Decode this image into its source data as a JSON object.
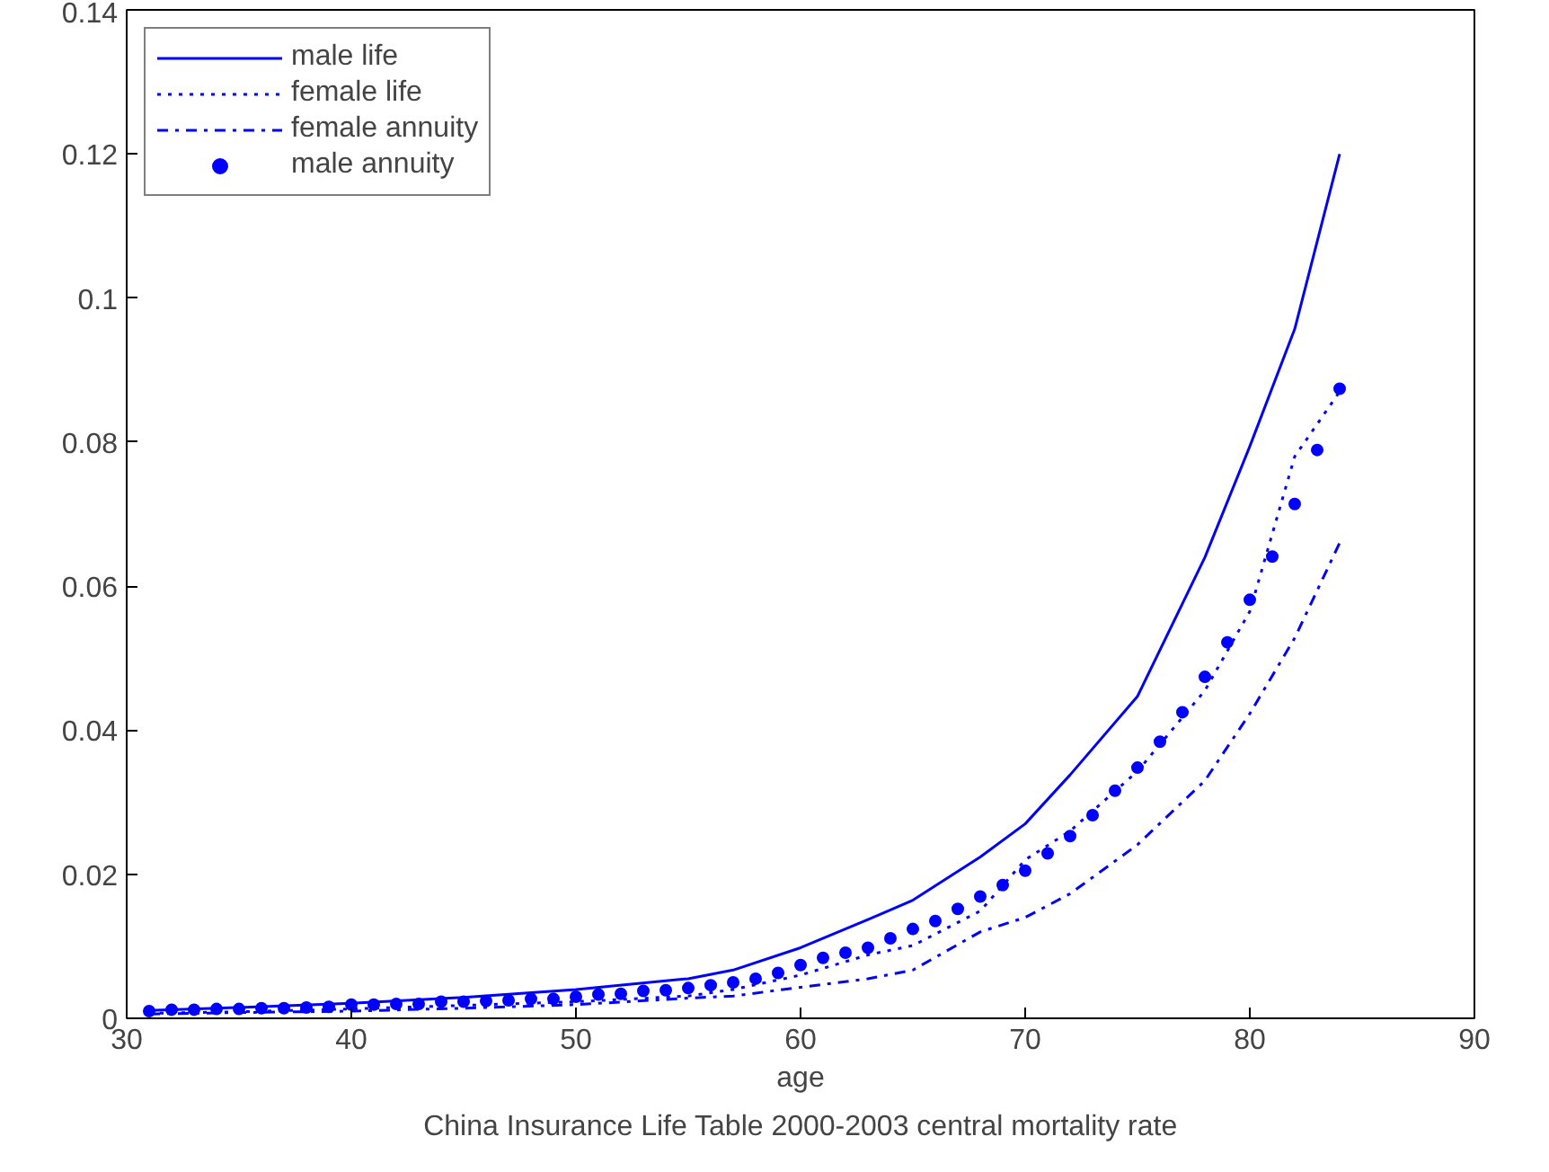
{
  "chart_data": {
    "type": "line",
    "xlabel": "age",
    "annotations": [
      "China Insurance Life Table 2000-2003 central mortality rate"
    ],
    "xlim": [
      30,
      90
    ],
    "xticks": [
      30,
      40,
      50,
      60,
      70,
      80,
      90
    ],
    "ylim": [
      0,
      0.14
    ],
    "yticks": [
      0,
      0.02,
      0.04,
      0.06,
      0.08,
      0.1,
      0.12,
      0.14
    ],
    "grid": false,
    "legend": "top left",
    "series": [
      {
        "name": "male life",
        "color": "#0000ff",
        "line_style": "solid",
        "x": [
          31,
          35,
          40,
          45,
          50,
          55,
          57,
          60,
          63,
          65,
          68,
          70,
          72,
          75,
          78,
          80,
          82,
          84
        ],
        "values": [
          0.0011,
          0.0015,
          0.0021,
          0.0029,
          0.004,
          0.0055,
          0.0067,
          0.0098,
          0.0137,
          0.0164,
          0.0224,
          0.027,
          0.0338,
          0.0447,
          0.064,
          0.0794,
          0.0957,
          0.12
        ]
      },
      {
        "name": "female life",
        "color": "#0000ff",
        "line_style": "dotted",
        "x": [
          31,
          35,
          40,
          45,
          50,
          55,
          57,
          60,
          63,
          65,
          68,
          70,
          72,
          75,
          78,
          80,
          82,
          84
        ],
        "values": [
          0.0007,
          0.0009,
          0.0013,
          0.0018,
          0.0023,
          0.0031,
          0.004,
          0.006,
          0.0088,
          0.0101,
          0.0149,
          0.022,
          0.026,
          0.0343,
          0.0455,
          0.0565,
          0.078,
          0.087
        ]
      },
      {
        "name": "female annuity",
        "color": "#0000ff",
        "line_style": "dashdot",
        "x": [
          31,
          35,
          40,
          45,
          50,
          55,
          57,
          60,
          63,
          65,
          68,
          70,
          72,
          75,
          78,
          80,
          82,
          84
        ],
        "values": [
          0.0006,
          0.0008,
          0.001,
          0.0014,
          0.0019,
          0.0028,
          0.0031,
          0.0043,
          0.0055,
          0.0067,
          0.012,
          0.014,
          0.0173,
          0.0241,
          0.033,
          0.0423,
          0.0528,
          0.066
        ]
      },
      {
        "name": "male annuity",
        "color": "#0000ff",
        "type": "scatter",
        "marker": "circle",
        "x": [
          31,
          32,
          33,
          34,
          35,
          36,
          37,
          38,
          39,
          40,
          41,
          42,
          43,
          44,
          45,
          46,
          47,
          48,
          49,
          50,
          51,
          52,
          53,
          54,
          55,
          56,
          57,
          58,
          59,
          60,
          61,
          62,
          63,
          64,
          65,
          66,
          67,
          68,
          69,
          70,
          71,
          72,
          73,
          74,
          75,
          76,
          77,
          78,
          79,
          80,
          81,
          82,
          83,
          84
        ],
        "values": [
          0.001,
          0.0012,
          0.0012,
          0.0013,
          0.0013,
          0.0014,
          0.0014,
          0.0015,
          0.0016,
          0.0019,
          0.0019,
          0.002,
          0.002,
          0.0023,
          0.0023,
          0.0024,
          0.0025,
          0.0027,
          0.0027,
          0.003,
          0.0033,
          0.0034,
          0.0038,
          0.0039,
          0.0042,
          0.0046,
          0.005,
          0.0055,
          0.0063,
          0.0074,
          0.0084,
          0.0091,
          0.0098,
          0.0111,
          0.0124,
          0.0135,
          0.0152,
          0.0169,
          0.0185,
          0.0205,
          0.0229,
          0.0253,
          0.0282,
          0.0316,
          0.0348,
          0.0384,
          0.0425,
          0.0474,
          0.0522,
          0.0581,
          0.0641,
          0.0714,
          0.0789,
          0.0874
        ]
      }
    ]
  }
}
